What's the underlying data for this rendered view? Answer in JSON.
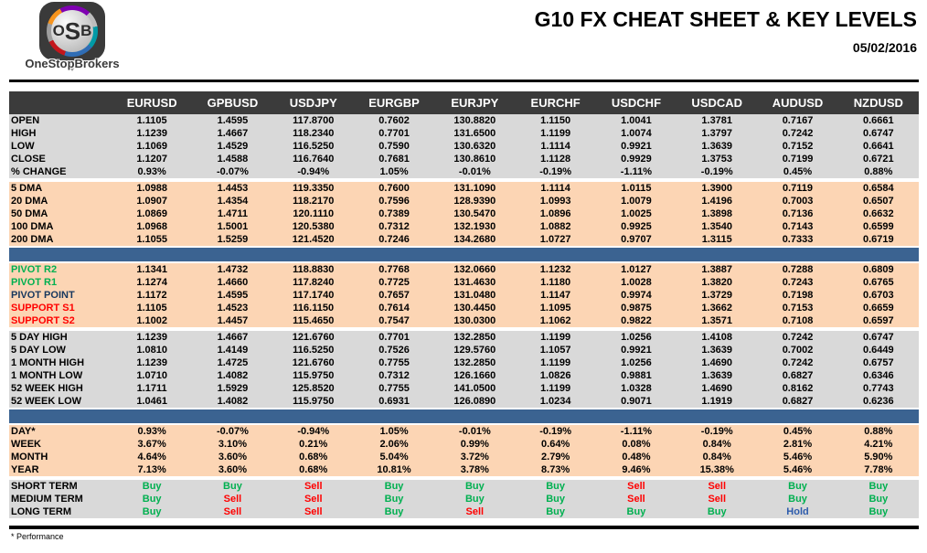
{
  "logo": {
    "monogram": "OSB",
    "brand": "OneStopBrokers"
  },
  "header": {
    "title": "G10 FX CHEAT SHEET & KEY LEVELS",
    "date": "05/02/2016"
  },
  "footnote": "* Performance",
  "colors": {
    "header_bg": "#3b3b3b",
    "gray": "#d9d9d9",
    "peach": "#fcd5b4",
    "bar_blue": "#3b6391",
    "buy_green": "#00b050",
    "sell_red": "#ff0000",
    "hold_blue": "#2e5cac",
    "pivot_navy": "#17375e"
  },
  "table": {
    "columns": [
      "EURUSD",
      "GPBUSD",
      "USDJPY",
      "EURGBP",
      "EURJPY",
      "EURCHF",
      "USDCHF",
      "USDCAD",
      "AUDUSD",
      "NZDUSD"
    ],
    "sections": [
      {
        "type": "rows",
        "style": "gray",
        "rows": [
          {
            "label": "OPEN",
            "values": [
              "1.1105",
              "1.4595",
              "117.8700",
              "0.7602",
              "130.8820",
              "1.1150",
              "1.0041",
              "1.3781",
              "0.7167",
              "0.6661"
            ]
          },
          {
            "label": "HIGH",
            "values": [
              "1.1239",
              "1.4667",
              "118.2340",
              "0.7701",
              "131.6500",
              "1.1199",
              "1.0074",
              "1.3797",
              "0.7242",
              "0.6747"
            ]
          },
          {
            "label": "LOW",
            "values": [
              "1.1069",
              "1.4529",
              "116.5250",
              "0.7590",
              "130.6320",
              "1.1114",
              "0.9921",
              "1.3639",
              "0.7152",
              "0.6641"
            ]
          },
          {
            "label": "CLOSE",
            "values": [
              "1.1207",
              "1.4588",
              "116.7640",
              "0.7681",
              "130.8610",
              "1.1128",
              "0.9929",
              "1.3753",
              "0.7199",
              "0.6721"
            ]
          },
          {
            "label": "% CHANGE",
            "values": [
              "0.93%",
              "-0.07%",
              "-0.94%",
              "1.05%",
              "-0.01%",
              "-0.19%",
              "-1.11%",
              "-0.19%",
              "0.45%",
              "0.88%"
            ]
          }
        ]
      },
      {
        "type": "gap"
      },
      {
        "type": "rows",
        "style": "peach",
        "rows": [
          {
            "label": "5 DMA",
            "values": [
              "1.0988",
              "1.4453",
              "119.3350",
              "0.7600",
              "131.1090",
              "1.1114",
              "1.0115",
              "1.3900",
              "0.7119",
              "0.6584"
            ]
          },
          {
            "label": "20 DMA",
            "values": [
              "1.0907",
              "1.4354",
              "118.2170",
              "0.7596",
              "128.9390",
              "1.0993",
              "1.0079",
              "1.4196",
              "0.7003",
              "0.6507"
            ]
          },
          {
            "label": "50 DMA",
            "values": [
              "1.0869",
              "1.4711",
              "120.1110",
              "0.7389",
              "130.5470",
              "1.0896",
              "1.0025",
              "1.3898",
              "0.7136",
              "0.6632"
            ]
          },
          {
            "label": "100 DMA",
            "values": [
              "1.0968",
              "1.5001",
              "120.5380",
              "0.7312",
              "132.1930",
              "1.0882",
              "0.9925",
              "1.3540",
              "0.7143",
              "0.6599"
            ]
          },
          {
            "label": "200 DMA",
            "values": [
              "1.1055",
              "1.5259",
              "121.4520",
              "0.7246",
              "134.2680",
              "1.0727",
              "0.9707",
              "1.3115",
              "0.7333",
              "0.6719"
            ]
          }
        ]
      },
      {
        "type": "bar"
      },
      {
        "type": "rows",
        "style": "peach",
        "rows": [
          {
            "label": "PIVOT R2",
            "label_class": "c-green",
            "values": [
              "1.1341",
              "1.4732",
              "118.8830",
              "0.7768",
              "132.0660",
              "1.1232",
              "1.0127",
              "1.3887",
              "0.7288",
              "0.6809"
            ]
          },
          {
            "label": "PIVOT R1",
            "label_class": "c-green",
            "values": [
              "1.1274",
              "1.4660",
              "117.8240",
              "0.7725",
              "131.4630",
              "1.1180",
              "1.0028",
              "1.3820",
              "0.7243",
              "0.6765"
            ]
          },
          {
            "label": "PIVOT POINT",
            "label_class": "c-navy",
            "values": [
              "1.1172",
              "1.4595",
              "117.1740",
              "0.7657",
              "131.0480",
              "1.1147",
              "0.9974",
              "1.3729",
              "0.7198",
              "0.6703"
            ]
          },
          {
            "label": "SUPPORT S1",
            "label_class": "c-red",
            "values": [
              "1.1105",
              "1.4523",
              "116.1150",
              "0.7614",
              "130.4450",
              "1.1095",
              "0.9875",
              "1.3662",
              "0.7153",
              "0.6659"
            ]
          },
          {
            "label": "SUPPORT S2",
            "label_class": "c-red",
            "values": [
              "1.1002",
              "1.4457",
              "115.4650",
              "0.7547",
              "130.0300",
              "1.1062",
              "0.9822",
              "1.3571",
              "0.7108",
              "0.6597"
            ]
          }
        ]
      },
      {
        "type": "gap"
      },
      {
        "type": "rows",
        "style": "gray",
        "rows": [
          {
            "label": "5 DAY HIGH",
            "values": [
              "1.1239",
              "1.4667",
              "121.6760",
              "0.7701",
              "132.2850",
              "1.1199",
              "1.0256",
              "1.4108",
              "0.7242",
              "0.6747"
            ]
          },
          {
            "label": "5 DAY LOW",
            "values": [
              "1.0810",
              "1.4149",
              "116.5250",
              "0.7526",
              "129.5760",
              "1.1057",
              "0.9921",
              "1.3639",
              "0.7002",
              "0.6449"
            ]
          },
          {
            "label": "1 MONTH HIGH",
            "values": [
              "1.1239",
              "1.4725",
              "121.6760",
              "0.7755",
              "132.2850",
              "1.1199",
              "1.0256",
              "1.4690",
              "0.7242",
              "0.6757"
            ]
          },
          {
            "label": "1 MONTH LOW",
            "values": [
              "1.0710",
              "1.4082",
              "115.9750",
              "0.7312",
              "126.1660",
              "1.0826",
              "0.9881",
              "1.3639",
              "0.6827",
              "0.6346"
            ]
          },
          {
            "label": "52 WEEK HIGH",
            "values": [
              "1.1711",
              "1.5929",
              "125.8520",
              "0.7755",
              "141.0500",
              "1.1199",
              "1.0328",
              "1.4690",
              "0.8162",
              "0.7743"
            ]
          },
          {
            "label": "52 WEEK LOW",
            "values": [
              "1.0461",
              "1.4082",
              "115.9750",
              "0.6931",
              "126.0890",
              "1.0234",
              "0.9071",
              "1.1919",
              "0.6827",
              "0.6236"
            ]
          }
        ]
      },
      {
        "type": "bar"
      },
      {
        "type": "rows",
        "style": "peach",
        "rows": [
          {
            "label": "DAY*",
            "values": [
              "0.93%",
              "-0.07%",
              "-0.94%",
              "1.05%",
              "-0.01%",
              "-0.19%",
              "-1.11%",
              "-0.19%",
              "0.45%",
              "0.88%"
            ]
          },
          {
            "label": "WEEK",
            "values": [
              "3.67%",
              "3.10%",
              "0.21%",
              "2.06%",
              "0.99%",
              "0.64%",
              "0.08%",
              "0.84%",
              "2.81%",
              "4.21%"
            ]
          },
          {
            "label": "MONTH",
            "values": [
              "4.64%",
              "3.60%",
              "0.68%",
              "5.04%",
              "3.72%",
              "2.79%",
              "0.48%",
              "0.84%",
              "5.46%",
              "5.90%"
            ]
          },
          {
            "label": "YEAR",
            "values": [
              "7.13%",
              "3.60%",
              "0.68%",
              "10.81%",
              "3.78%",
              "8.73%",
              "9.46%",
              "15.38%",
              "5.46%",
              "7.78%"
            ]
          }
        ]
      },
      {
        "type": "gap"
      },
      {
        "type": "rows",
        "style": "gray",
        "signal": true,
        "rows": [
          {
            "label": "SHORT TERM",
            "values": [
              "Buy",
              "Buy",
              "Sell",
              "Buy",
              "Buy",
              "Buy",
              "Sell",
              "Sell",
              "Buy",
              "Buy"
            ]
          },
          {
            "label": "MEDIUM TERM",
            "values": [
              "Buy",
              "Sell",
              "Sell",
              "Buy",
              "Buy",
              "Buy",
              "Sell",
              "Sell",
              "Buy",
              "Buy"
            ]
          },
          {
            "label": "LONG TERM",
            "values": [
              "Buy",
              "Sell",
              "Sell",
              "Buy",
              "Sell",
              "Buy",
              "Buy",
              "Buy",
              "Hold",
              "Buy"
            ]
          }
        ]
      }
    ]
  }
}
